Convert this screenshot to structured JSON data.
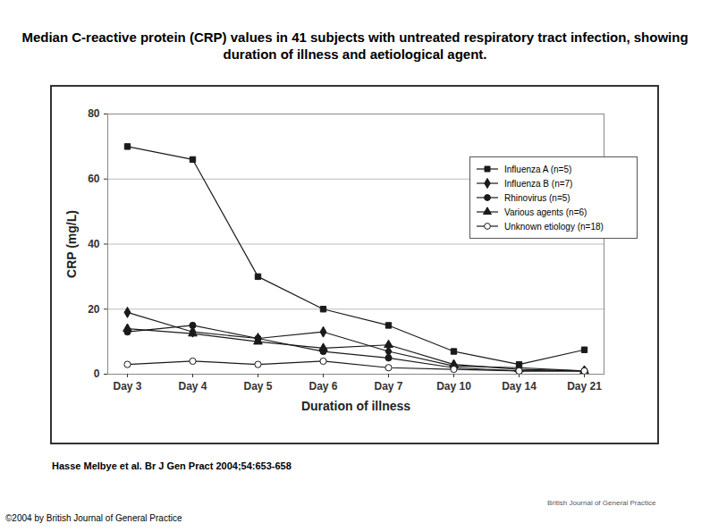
{
  "chart_data": {
    "type": "line",
    "title": "Median C-reactive protein (CRP) values in 41 subjects with untreated respiratory tract infection, showing duration of illness and aetiological agent.",
    "x_label": "Duration of illness",
    "y_label": "CRP (mg/L)",
    "categories": [
      "Day 3",
      "Day 4",
      "Day 5",
      "Day 6",
      "Day 7",
      "Day 10",
      "Day 14",
      "Day 21"
    ],
    "series": [
      {
        "name": "Influenza A (n=5)",
        "color": "#1a1a1a",
        "marker": "square",
        "values": [
          70,
          66,
          30,
          20,
          15,
          7,
          3,
          7.5
        ]
      },
      {
        "name": "Influenza B (n=7)",
        "color": "#1a1a1a",
        "marker": "diamond",
        "values": [
          19,
          13,
          11,
          13,
          7,
          2.5,
          2,
          1
        ]
      },
      {
        "name": "Rhinovirus (n=5)",
        "color": "#1a1a1a",
        "marker": "circle",
        "values": [
          13,
          15,
          11,
          7,
          5,
          2,
          1,
          1
        ]
      },
      {
        "name": "Various agents (n=6)",
        "color": "#1a1a1a",
        "marker": "triangle",
        "values": [
          14,
          12.5,
          10,
          8,
          9,
          3,
          1.5,
          1
        ]
      },
      {
        "name": "Unknown etiology (n=18)",
        "color": "#1a1a1a",
        "marker": "open_circle",
        "values": [
          3,
          4,
          3,
          4,
          2,
          1.5,
          1,
          1
        ]
      }
    ],
    "ylim": [
      0,
      80
    ],
    "yticks": [
      0,
      20,
      40,
      60,
      80
    ],
    "grid": true,
    "legend": "top-right"
  },
  "caption": "Hasse Melbye et al. Br J Gen Pract 2004;54:653-658",
  "copyright": "©2004 by British Journal of General Practice",
  "logo_text": "British Journal of General Practice"
}
